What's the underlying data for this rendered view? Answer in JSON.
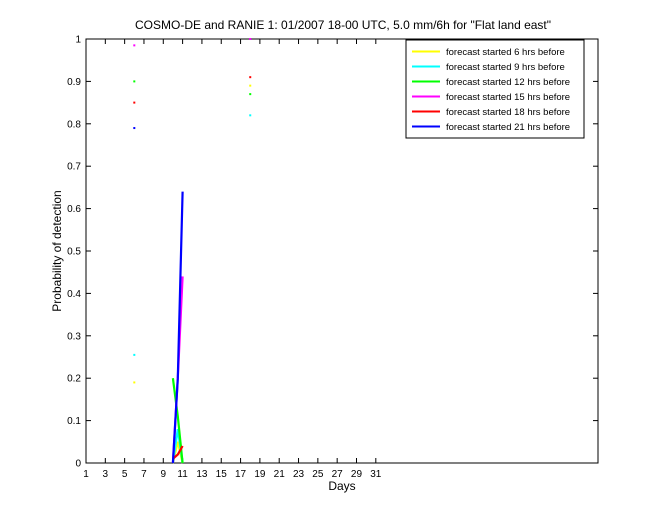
{
  "chart_data": {
    "type": "line",
    "title": "COSMO-DE and RANIE 1: 01/2007 18-00 UTC, 5.0 mm/6h for \"Flat land east\"",
    "xlabel": "Days",
    "ylabel": "Probability of detection",
    "xlim": [
      1,
      54
    ],
    "ylim": [
      0,
      1
    ],
    "xticks": [
      1,
      3,
      5,
      7,
      9,
      11,
      13,
      15,
      17,
      19,
      21,
      23,
      25,
      27,
      29,
      31
    ],
    "yticks": [
      0,
      0.1,
      0.2,
      0.3,
      0.4,
      0.5,
      0.6,
      0.7,
      0.8,
      0.9,
      1
    ],
    "ytick_labels": [
      "0",
      "0.1",
      "0.2",
      "0.3",
      "0.4",
      "0.5",
      "0.6",
      "0.7",
      "0.8",
      "0.9",
      "1"
    ],
    "legend_position": "top-right",
    "grid": false,
    "series": [
      {
        "name": "forecast started 6 hrs before",
        "color": "#ffff00",
        "points": [
          [
            6,
            0.19
          ],
          [
            18,
            0.89
          ]
        ],
        "lines": [
          [
            [
              10,
              0.0
            ],
            [
              10.5,
              0.05
            ],
            [
              11,
              0.0
            ]
          ]
        ]
      },
      {
        "name": "forecast started 9 hrs before",
        "color": "#00ffff",
        "points": [
          [
            6,
            0.255
          ],
          [
            18,
            0.82
          ]
        ],
        "lines": [
          [
            [
              10,
              0.0
            ],
            [
              10.5,
              0.08
            ],
            [
              11,
              0.0
            ]
          ]
        ]
      },
      {
        "name": "forecast started 12 hrs before",
        "color": "#00ff00",
        "points": [
          [
            6,
            0.9
          ],
          [
            18,
            0.87
          ]
        ],
        "lines": [
          [
            [
              10,
              0.2
            ],
            [
              10.5,
              0.11
            ],
            [
              11,
              0.0
            ]
          ]
        ]
      },
      {
        "name": "forecast started 15 hrs before",
        "color": "#ff00ff",
        "points": [
          [
            6,
            0.985
          ],
          [
            18,
            1.0
          ]
        ],
        "lines": [
          [
            [
              10,
              0.0
            ],
            [
              10.5,
              0.2
            ],
            [
              11,
              0.44
            ]
          ]
        ]
      },
      {
        "name": "forecast started 18 hrs before",
        "color": "#ff0000",
        "points": [
          [
            6,
            0.85
          ],
          [
            18,
            0.91
          ]
        ],
        "lines": [
          [
            [
              10,
              0.01
            ],
            [
              10.5,
              0.02
            ],
            [
              11,
              0.04
            ]
          ]
        ]
      },
      {
        "name": "forecast started 21 hrs before",
        "color": "#0000ff",
        "points": [
          [
            6,
            0.79
          ]
        ],
        "lines": [
          [
            [
              10,
              0.0
            ],
            [
              10.5,
              0.2
            ],
            [
              11,
              0.64
            ]
          ]
        ]
      }
    ]
  }
}
